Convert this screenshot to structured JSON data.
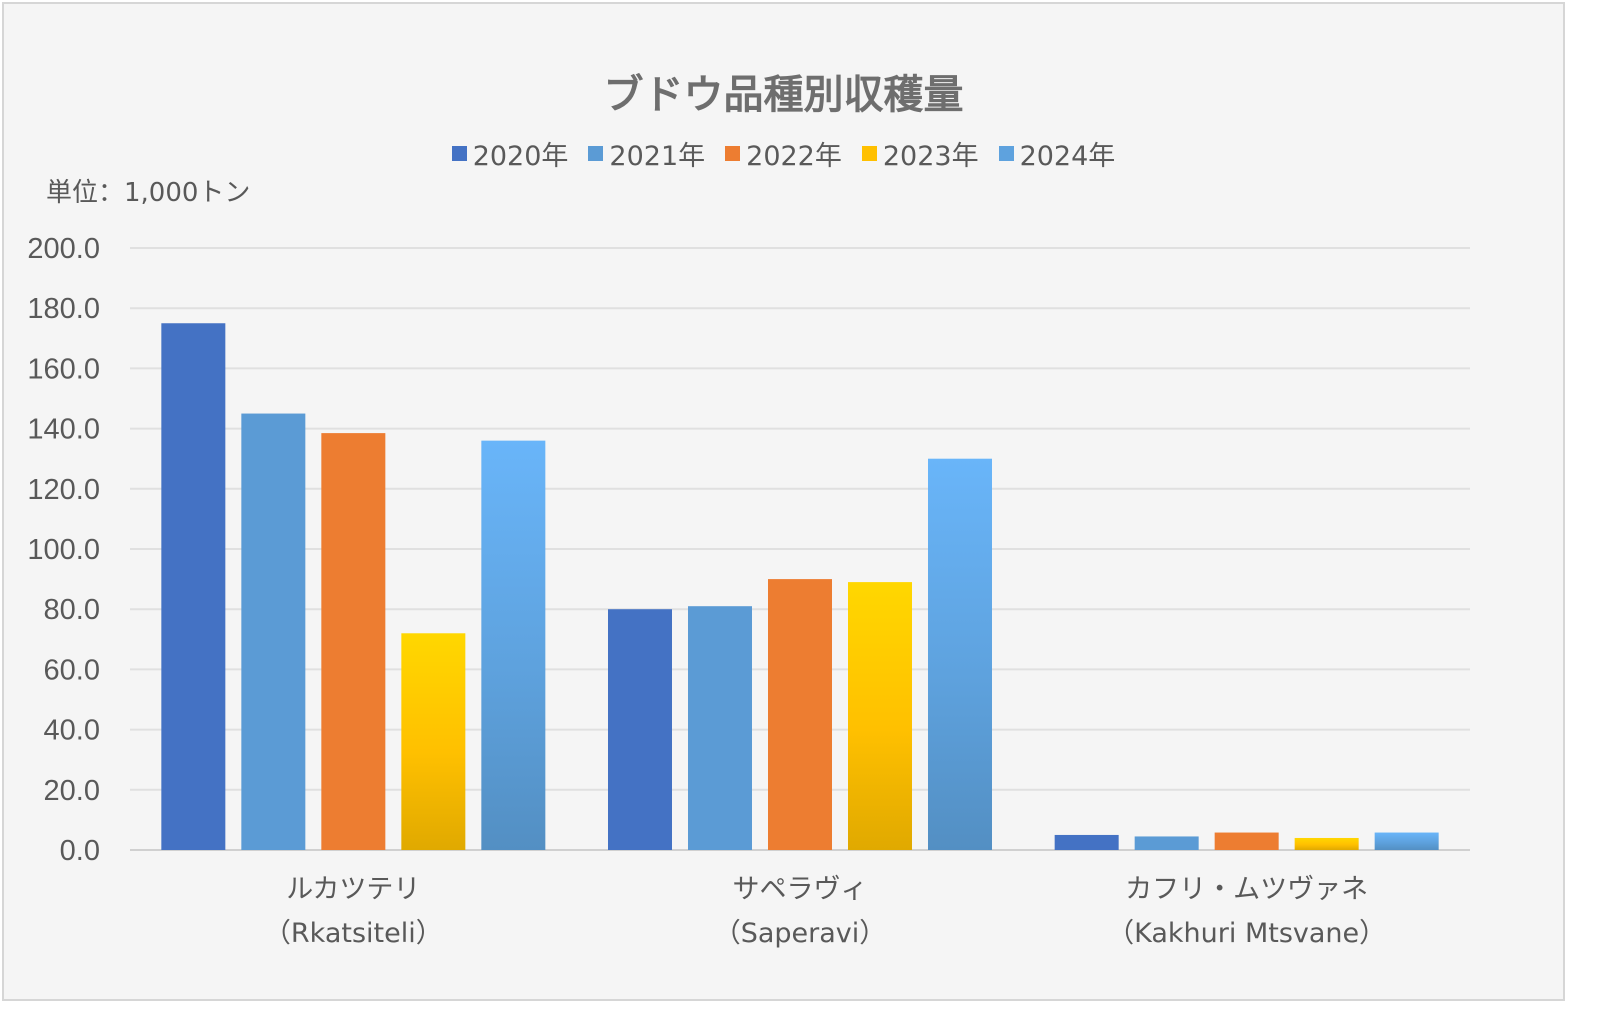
{
  "chart_data": {
    "type": "bar",
    "title": "ブドウ品種別収穫量",
    "unit_label": "単位：1,000トン",
    "categories": [
      {
        "line1": "ルカツテリ",
        "line2": "（Rkatsiteli）"
      },
      {
        "line1": "サペラヴィ",
        "line2": "（Saperavi）"
      },
      {
        "line1": "カフリ・ムツヴァネ",
        "line2": "（Kakhuri Mtsvane）"
      }
    ],
    "series": [
      {
        "name": "2020年",
        "color": "#4472c4",
        "values": [
          175,
          80,
          5
        ]
      },
      {
        "name": "2021年",
        "color": "#5b9bd5",
        "values": [
          145,
          81,
          4.5
        ]
      },
      {
        "name": "2022年",
        "color": "#ed7d31",
        "values": [
          138.5,
          90,
          5.8
        ]
      },
      {
        "name": "2023年",
        "color": "#ffc000",
        "values": [
          72,
          89,
          4
        ]
      },
      {
        "name": "2024年",
        "color": "#5ea2de",
        "values": [
          136,
          130,
          5.8
        ]
      }
    ],
    "ylim": [
      0,
      200
    ],
    "yticks": [
      "0.0",
      "20.0",
      "40.0",
      "60.0",
      "80.0",
      "100.0",
      "120.0",
      "140.0",
      "160.0",
      "180.0",
      "200.0"
    ],
    "grid": true,
    "legend_position": "top"
  }
}
